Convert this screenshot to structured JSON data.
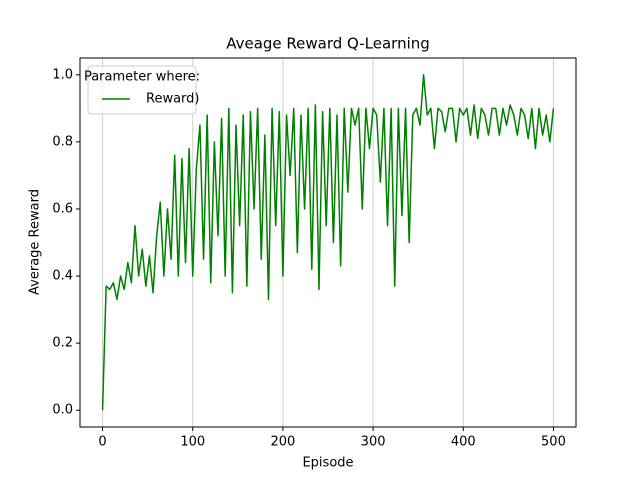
{
  "chart_data": {
    "type": "line",
    "title": "Aveage Reward Q-Learning",
    "x_label": "Episode",
    "y_label": "Average Reward",
    "x": [
      0,
      4,
      8,
      12,
      16,
      20,
      24,
      28,
      32,
      36,
      40,
      44,
      48,
      52,
      56,
      60,
      64,
      68,
      72,
      76,
      80,
      84,
      88,
      92,
      96,
      100,
      104,
      108,
      112,
      116,
      120,
      124,
      128,
      132,
      136,
      140,
      144,
      148,
      152,
      156,
      160,
      164,
      168,
      172,
      176,
      180,
      184,
      188,
      192,
      196,
      200,
      204,
      208,
      212,
      216,
      220,
      224,
      228,
      232,
      236,
      240,
      244,
      248,
      252,
      256,
      260,
      264,
      268,
      272,
      276,
      280,
      284,
      288,
      292,
      296,
      300,
      304,
      308,
      312,
      316,
      320,
      324,
      328,
      332,
      336,
      340,
      344,
      348,
      352,
      356,
      360,
      364,
      368,
      372,
      376,
      380,
      384,
      388,
      392,
      396,
      400,
      404,
      408,
      412,
      416,
      420,
      424,
      428,
      432,
      436,
      440,
      444,
      448,
      452,
      456,
      460,
      464,
      468,
      472,
      476,
      480,
      484,
      488,
      492,
      496,
      500
    ],
    "series": [
      {
        "name": "Reward)",
        "color": "#008000",
        "values": [
          0.0,
          0.37,
          0.36,
          0.38,
          0.33,
          0.4,
          0.36,
          0.44,
          0.38,
          0.55,
          0.4,
          0.48,
          0.37,
          0.46,
          0.35,
          0.52,
          0.62,
          0.4,
          0.6,
          0.45,
          0.76,
          0.4,
          0.75,
          0.44,
          0.78,
          0.4,
          0.72,
          0.85,
          0.45,
          0.88,
          0.38,
          0.8,
          0.52,
          0.87,
          0.4,
          0.9,
          0.35,
          0.85,
          0.55,
          0.88,
          0.37,
          0.89,
          0.6,
          0.9,
          0.45,
          0.82,
          0.33,
          0.9,
          0.55,
          0.89,
          0.4,
          0.88,
          0.7,
          0.9,
          0.47,
          0.88,
          0.6,
          0.9,
          0.42,
          0.91,
          0.36,
          0.89,
          0.55,
          0.9,
          0.5,
          0.88,
          0.43,
          0.9,
          0.65,
          0.9,
          0.85,
          0.9,
          0.6,
          0.9,
          0.78,
          0.9,
          0.88,
          0.68,
          0.9,
          0.55,
          0.9,
          0.37,
          0.9,
          0.58,
          0.9,
          0.5,
          0.88,
          0.9,
          0.85,
          1.0,
          0.88,
          0.9,
          0.78,
          0.9,
          0.89,
          0.83,
          0.9,
          0.9,
          0.8,
          0.9,
          0.88,
          0.9,
          0.82,
          0.91,
          0.81,
          0.9,
          0.88,
          0.82,
          0.9,
          0.9,
          0.82,
          0.9,
          0.85,
          0.91,
          0.88,
          0.82,
          0.9,
          0.88,
          0.81,
          0.9,
          0.78,
          0.9,
          0.82,
          0.88,
          0.8,
          0.9
        ]
      }
    ],
    "xlim": [
      -25,
      525
    ],
    "ylim": [
      -0.05,
      1.05
    ],
    "xticks": [
      0,
      100,
      200,
      300,
      400,
      500
    ],
    "yticks": [
      {
        "value": 0,
        "label": "0.0"
      },
      0.2,
      0.4,
      0.6,
      0.8,
      {
        "value": 1,
        "label": "1.0"
      }
    ],
    "grid_x": true,
    "legend_title": "Parameter where:",
    "legend_loc": "upper left"
  }
}
